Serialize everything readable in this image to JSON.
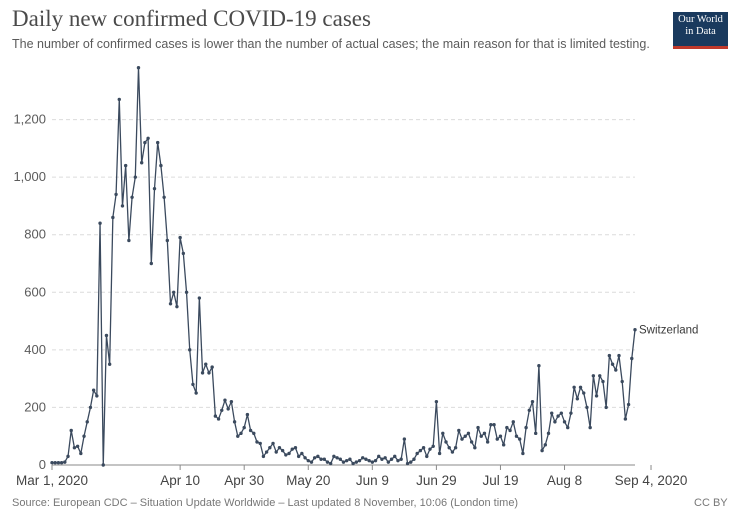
{
  "header": {
    "title": "Daily new confirmed COVID-19 cases",
    "subtitle": "The number of confirmed cases is lower than the number of actual cases; the main reason for that is limited testing."
  },
  "logo": {
    "line1": "Our World",
    "line2": "in Data"
  },
  "footer": {
    "source": "Source: European CDC – Situation Update Worldwide – Last updated 8 November, 10:06 (London time)",
    "license": "CC BY"
  },
  "colors": {
    "series": "#3b4a5e",
    "logo_bg": "#1a3a5e",
    "logo_accent": "#c0392b"
  },
  "chart_data": {
    "type": "line",
    "title": "Daily new confirmed COVID-19 cases",
    "xlabel": "",
    "ylabel": "",
    "x_start": "Mar 1, 2020",
    "x_end": "Sep 4, 2020",
    "ylim": [
      0,
      1400
    ],
    "yticks": [
      {
        "value": 0,
        "label": "0"
      },
      {
        "value": 200,
        "label": "200"
      },
      {
        "value": 400,
        "label": "400"
      },
      {
        "value": 600,
        "label": "600"
      },
      {
        "value": 800,
        "label": "800"
      },
      {
        "value": 1000,
        "label": "1,000"
      },
      {
        "value": 1200,
        "label": "1,200"
      }
    ],
    "xticks": [
      {
        "day": 0,
        "label": "Mar 1, 2020"
      },
      {
        "day": 40,
        "label": "Apr 10"
      },
      {
        "day": 60,
        "label": "Apr 30"
      },
      {
        "day": 80,
        "label": "May 20"
      },
      {
        "day": 100,
        "label": "Jun 9"
      },
      {
        "day": 120,
        "label": "Jun 29"
      },
      {
        "day": 140,
        "label": "Jul 19"
      },
      {
        "day": 160,
        "label": "Aug 8"
      },
      {
        "day": 187,
        "label": "Sep 4, 2020"
      }
    ],
    "series": [
      {
        "name": "Switzerland",
        "values": [
          8,
          8,
          8,
          8,
          10,
          30,
          120,
          60,
          65,
          40,
          100,
          150,
          200,
          260,
          240,
          840,
          0,
          450,
          350,
          860,
          940,
          1270,
          900,
          1040,
          780,
          930,
          1000,
          1380,
          1050,
          1120,
          1135,
          700,
          960,
          1120,
          1040,
          930,
          780,
          560,
          600,
          550,
          790,
          735,
          600,
          400,
          280,
          250,
          580,
          320,
          350,
          320,
          340,
          170,
          160,
          190,
          225,
          195,
          220,
          150,
          100,
          110,
          130,
          175,
          120,
          110,
          80,
          75,
          30,
          45,
          60,
          75,
          45,
          60,
          50,
          35,
          40,
          55,
          60,
          30,
          40,
          25,
          15,
          10,
          25,
          30,
          20,
          20,
          10,
          5,
          30,
          25,
          20,
          10,
          15,
          20,
          5,
          10,
          15,
          25,
          20,
          15,
          10,
          15,
          30,
          20,
          25,
          10,
          20,
          30,
          15,
          20,
          90,
          5,
          10,
          20,
          40,
          50,
          60,
          30,
          55,
          65,
          220,
          40,
          110,
          80,
          60,
          45,
          60,
          120,
          90,
          100,
          110,
          80,
          60,
          130,
          100,
          110,
          80,
          140,
          140,
          90,
          100,
          70,
          130,
          120,
          150,
          100,
          90,
          40,
          130,
          190,
          220,
          110,
          345,
          50,
          70,
          110,
          180,
          150,
          170,
          180,
          150,
          130,
          180,
          270,
          230,
          270,
          250,
          200,
          130,
          310,
          240,
          310,
          290,
          200,
          380,
          350,
          330,
          380,
          290,
          160,
          210,
          370,
          470
        ]
      }
    ]
  }
}
